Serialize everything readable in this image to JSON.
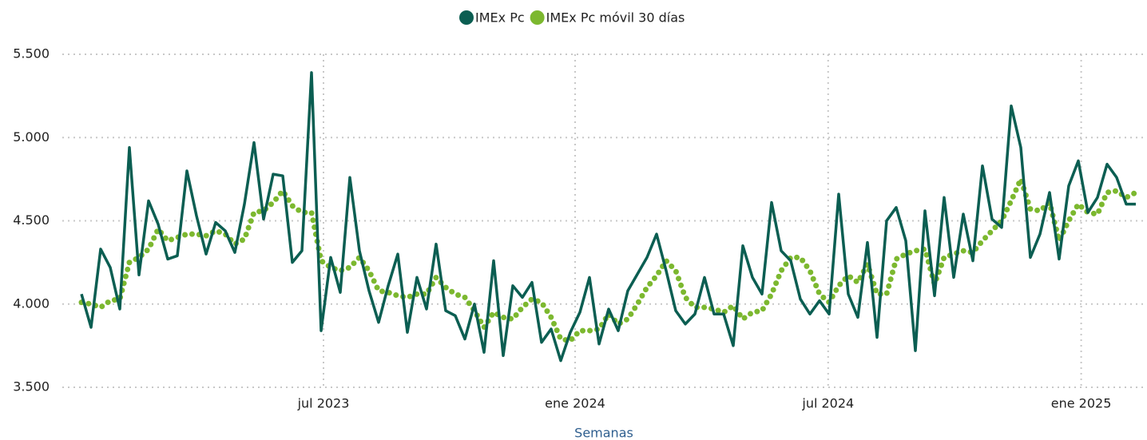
{
  "chart_data": {
    "type": "line",
    "x_label": "Semanas",
    "x": [
      0,
      1,
      2,
      3,
      4,
      5,
      6,
      7,
      8,
      9,
      10,
      11,
      12,
      13,
      14,
      15,
      16,
      17,
      18,
      19,
      20,
      21,
      22,
      23,
      24,
      25,
      26,
      27,
      28,
      29,
      30,
      31,
      32,
      33,
      34,
      35,
      36,
      37,
      38,
      39,
      40,
      41,
      42,
      43,
      44,
      45,
      46,
      47,
      48,
      49,
      50,
      51,
      52,
      53,
      54,
      55,
      56,
      57,
      58,
      59,
      60,
      61,
      62,
      63,
      64,
      65,
      66,
      67,
      68,
      69,
      70,
      71,
      72,
      73,
      74,
      75,
      76,
      77,
      78,
      79,
      80,
      81,
      82,
      83,
      84,
      85,
      86,
      87,
      88,
      89,
      90,
      91,
      92,
      93,
      94,
      95,
      96,
      97,
      98,
      99,
      100,
      101,
      102,
      103,
      104,
      105,
      106,
      107,
      108,
      109,
      110
    ],
    "series": [
      {
        "name": "IMEx Pc",
        "color": "#0b5e52",
        "style": "solid",
        "values": [
          4060,
          3860,
          4330,
          4220,
          3970,
          4940,
          4175,
          4620,
          4480,
          4270,
          4290,
          4800,
          4530,
          4300,
          4490,
          4440,
          4310,
          4600,
          4970,
          4510,
          4780,
          4770,
          4250,
          4320,
          5390,
          3840,
          4280,
          4070,
          4760,
          4320,
          4080,
          3890,
          4110,
          4300,
          3830,
          4160,
          3970,
          4360,
          3960,
          3930,
          3790,
          4000,
          3710,
          4260,
          3690,
          4110,
          4040,
          4130,
          3770,
          3850,
          3660,
          3830,
          3950,
          4160,
          3760,
          3970,
          3840,
          4080,
          4180,
          4280,
          4420,
          4200,
          3960,
          3880,
          3940,
          4160,
          3940,
          3940,
          3750,
          4350,
          4160,
          4060,
          4610,
          4320,
          4260,
          4030,
          3940,
          4020,
          3940,
          4660,
          4060,
          3920,
          4370,
          3800,
          4500,
          4580,
          4380,
          3720,
          4560,
          4050,
          4640,
          4160,
          4540,
          4260,
          4830,
          4510,
          4460,
          5190,
          4940,
          4280,
          4420,
          4670,
          4270,
          4710,
          4860,
          4550,
          4640,
          4840,
          4760,
          4600,
          4600
        ]
      },
      {
        "name": "IMEx Pc móvil 30 días",
        "color": "#7cb82f",
        "style": "dotted",
        "values": [
          4010,
          4000,
          3980,
          4020,
          4030,
          4250,
          4280,
          4330,
          4450,
          4380,
          4400,
          4420,
          4420,
          4410,
          4440,
          4420,
          4360,
          4390,
          4550,
          4560,
          4610,
          4680,
          4590,
          4550,
          4550,
          4260,
          4220,
          4200,
          4220,
          4280,
          4200,
          4080,
          4070,
          4050,
          4040,
          4060,
          4060,
          4160,
          4100,
          4060,
          4040,
          3960,
          3860,
          3950,
          3920,
          3910,
          3980,
          4030,
          4010,
          3920,
          3790,
          3780,
          3840,
          3840,
          3850,
          3940,
          3880,
          3910,
          4000,
          4100,
          4170,
          4260,
          4200,
          4040,
          3980,
          3980,
          3970,
          3950,
          3990,
          3910,
          3950,
          3960,
          4060,
          4200,
          4280,
          4280,
          4200,
          4060,
          4010,
          4110,
          4170,
          4130,
          4240,
          4060,
          4060,
          4270,
          4300,
          4320,
          4330,
          4120,
          4280,
          4300,
          4320,
          4310,
          4380,
          4440,
          4500,
          4620,
          4750,
          4570,
          4560,
          4610,
          4380,
          4500,
          4600,
          4550,
          4540,
          4670,
          4680,
          4640,
          4670
        ]
      }
    ],
    "xlim": [
      -2,
      111
    ],
    "xticks": [
      {
        "value": 25.25,
        "label": "jul 2023"
      },
      {
        "value": 51.5,
        "label": "ene 2024"
      },
      {
        "value": 77.9,
        "label": "jul 2024"
      },
      {
        "value": 104.3,
        "label": "ene 2025"
      }
    ],
    "ylim": [
      3500,
      5500
    ],
    "yticks": [
      {
        "value": 3500,
        "label": "3.500"
      },
      {
        "value": 4000,
        "label": "4.000"
      },
      {
        "value": 4500,
        "label": "4.500"
      },
      {
        "value": 5000,
        "label": "5.000"
      },
      {
        "value": 5500,
        "label": "5.500"
      }
    ],
    "grid": true,
    "legend": "top"
  }
}
